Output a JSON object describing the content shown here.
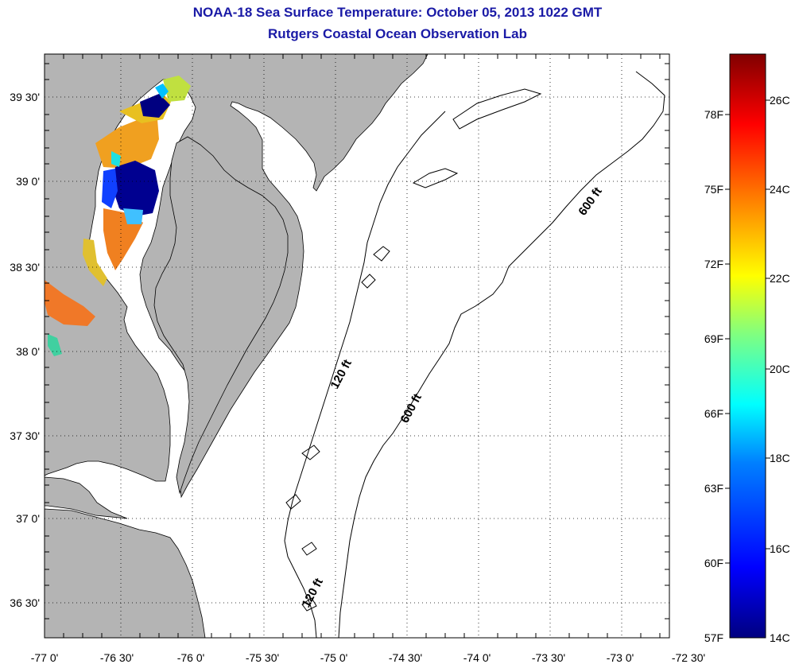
{
  "header": {
    "title": "NOAA-18 Sea Surface Temperature:  October 05, 2013 1022 GMT",
    "subtitle": "Rutgers Coastal Ocean Observation Lab"
  },
  "map": {
    "lon_ticks": [
      "-77 0'",
      "-76 30'",
      "-76 0'",
      "-75 30'",
      "-75 0'",
      "-74 30'",
      "-74 0'",
      "-73 30'",
      "-73 0'",
      "-72 30'"
    ],
    "lat_ticks": [
      "39 30'",
      "39 0'",
      "38 30'",
      "38 0'",
      "37 30'",
      "37 0'",
      "36 30'"
    ],
    "contour_labels": [
      "120 ft",
      "600 ft",
      "600 ft",
      "120 ft"
    ],
    "land_color": "#b4b4b4",
    "water_color": "#ffffff"
  },
  "colorbar": {
    "f_labels": [
      "78F",
      "75F",
      "72F",
      "69F",
      "66F",
      "63F",
      "60F",
      "57F"
    ],
    "c_labels": [
      "26C",
      "24C",
      "22C",
      "20C",
      "18C",
      "16C",
      "14C"
    ],
    "colors": [
      "#800000",
      "#ff0000",
      "#ff8000",
      "#ffff00",
      "#80ff80",
      "#00ffff",
      "#0080ff",
      "#0000ff",
      "#000080"
    ]
  }
}
